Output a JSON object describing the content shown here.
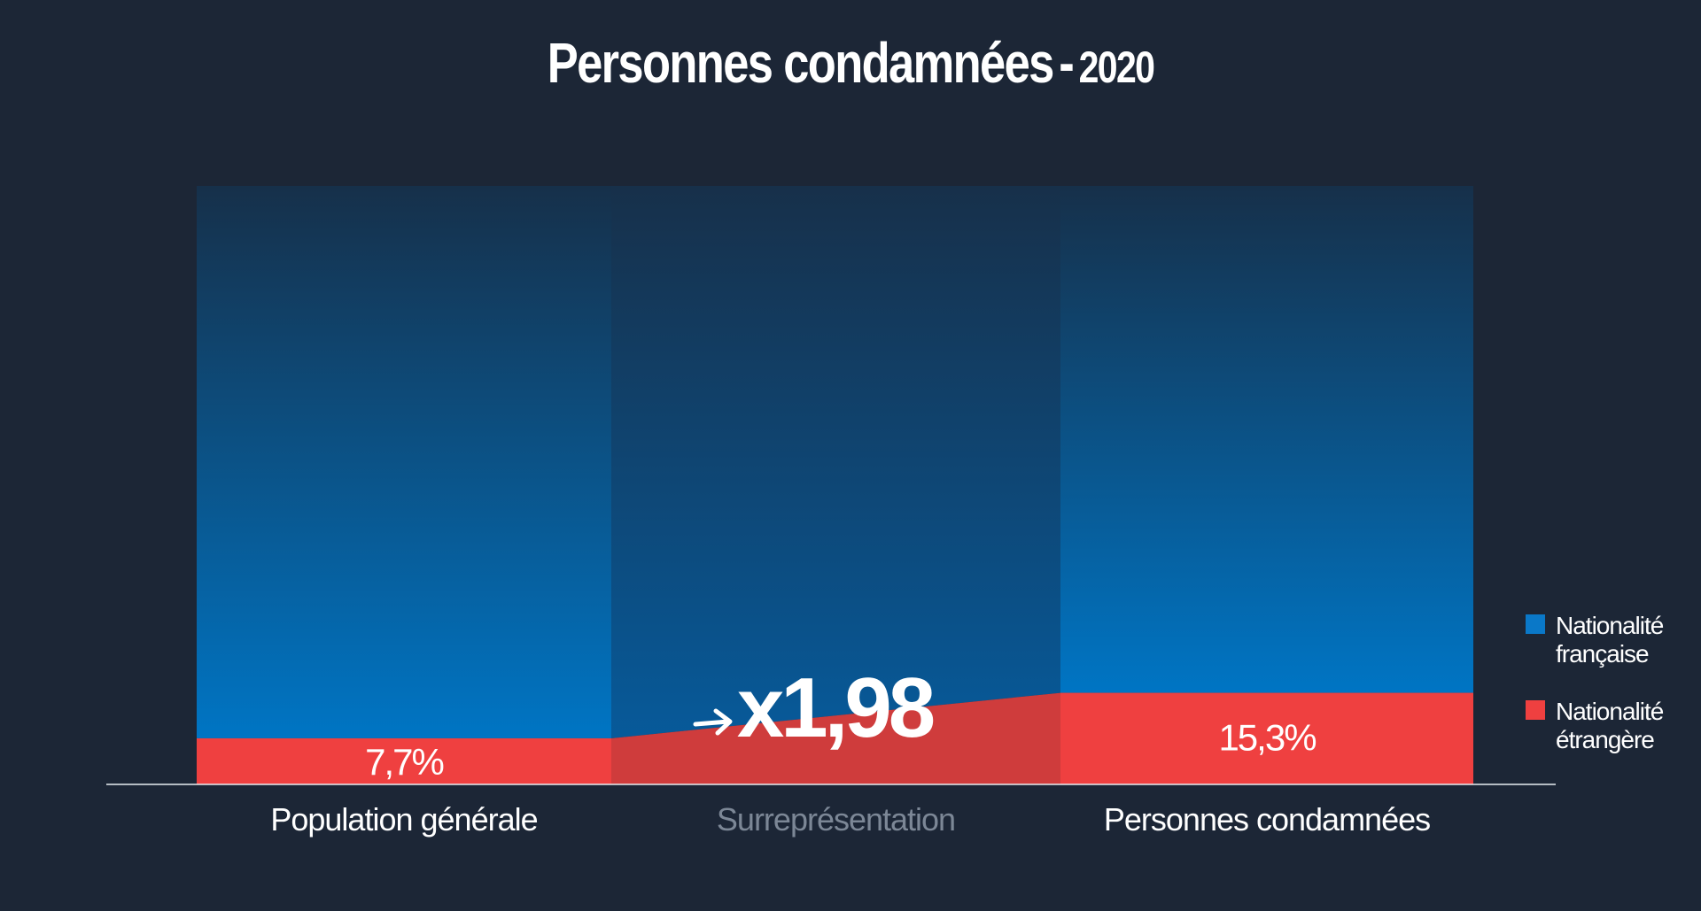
{
  "chart_data": {
    "type": "bar",
    "title": "Personnes condamnées",
    "subtitle": "2020",
    "categories": [
      "Population générale",
      "Surreprésentation",
      "Personnes condamnées"
    ],
    "series": [
      {
        "name": "Nationalité française",
        "color": "#0a78c8",
        "values": [
          92.3,
          null,
          84.7
        ]
      },
      {
        "name": "Nationalité étrangère",
        "color": "#ef4040",
        "values": [
          7.7,
          null,
          15.3
        ]
      }
    ],
    "value_labels": [
      "7,7%",
      "15,3%"
    ],
    "factor_label": "x1,98",
    "factor_icon": "right-arrow-icon",
    "legend": [
      {
        "line1": "Nationalité",
        "line2": "française",
        "color": "#0a78c8"
      },
      {
        "line1": "Nationalité",
        "line2": "étrangère",
        "color": "#ef4040"
      }
    ],
    "legend_position": "right",
    "ylim": [
      0,
      100
    ],
    "grid": false
  }
}
